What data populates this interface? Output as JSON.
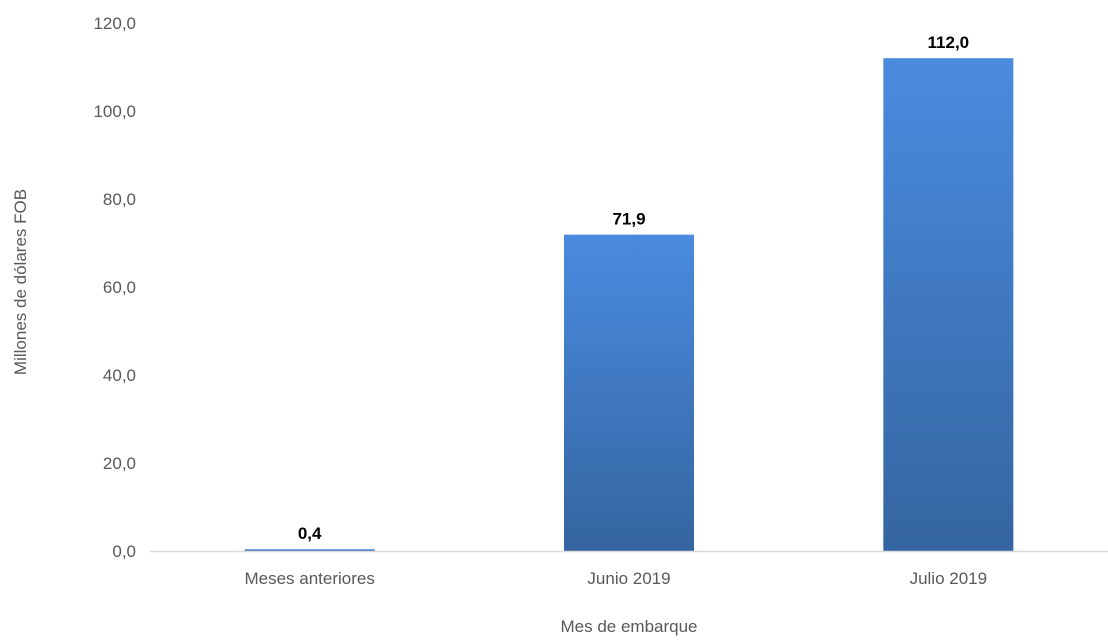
{
  "chart_data": {
    "type": "bar",
    "categories": [
      "Meses anteriores",
      "Junio 2019",
      "Julio 2019"
    ],
    "values": [
      0.4,
      71.9,
      112.0
    ],
    "data_labels": [
      "0,4",
      "71,9",
      "112,0"
    ],
    "title": "",
    "xlabel": "Mes de embarque",
    "ylabel": "Millones de dólares FOB",
    "ylim": [
      0,
      120
    ],
    "y_ticks": [
      0,
      20,
      40,
      60,
      80,
      100,
      120
    ],
    "y_tick_labels": [
      "0,0",
      "20,0",
      "40,0",
      "60,0",
      "80,0",
      "100,0",
      "120,0"
    ],
    "grid": false,
    "legend": "none",
    "colors": {
      "bar_top": "#4A8BDF",
      "bar_bottom": "#3465A0",
      "axis_line": "#D9D9D9",
      "tick_text": "#595959",
      "label_text": "#000000"
    }
  }
}
